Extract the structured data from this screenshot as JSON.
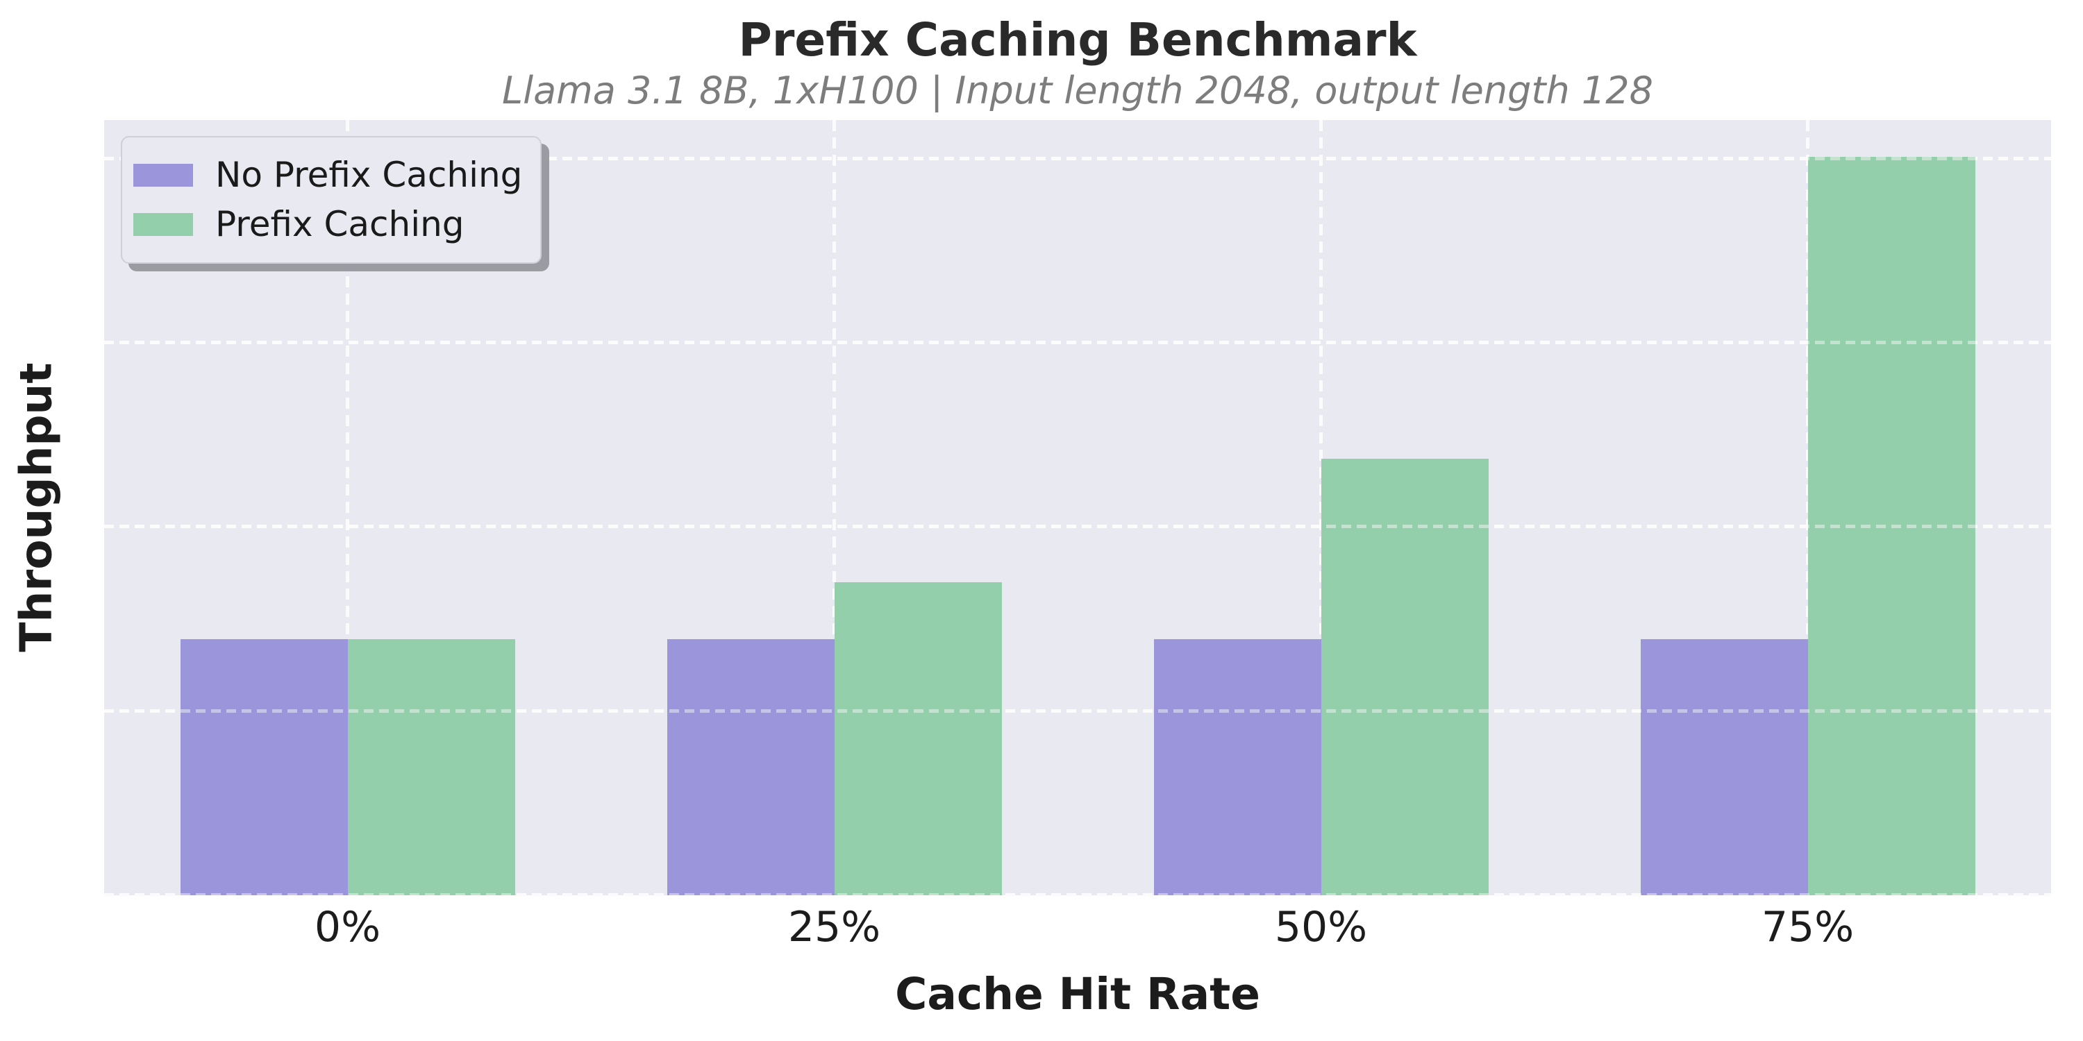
{
  "figure": {
    "title": "Prefix Caching Benchmark",
    "subtitle": "Llama 3.1 8B, 1xH100 | Input length 2048, output length 128"
  },
  "chart_data": {
    "type": "bar",
    "title": "Prefix Caching Benchmark",
    "subtitle": "Llama 3.1 8B, 1xH100 | Input length 2048, output length 128",
    "categories": [
      "0%",
      "25%",
      "50%",
      "75%"
    ],
    "series": [
      {
        "name": "No Prefix Caching",
        "color": "#9b96db",
        "values": [
          1.39,
          1.39,
          1.39,
          1.39
        ]
      },
      {
        "name": "Prefix Caching",
        "color": "#94cfac",
        "values": [
          1.39,
          1.7,
          2.37,
          4.01
        ]
      }
    ],
    "xlabel": "Cache Hit Rate",
    "ylabel": "Throughput",
    "ylim": [
      0,
      4.21
    ],
    "ytick_interval": 1,
    "yticks_labeled": false,
    "value_units": "relative units (y-axis has no numeric tick labels; 1.0 = one gridline interval)",
    "grid": "dashed white horizontal and vertical gridlines on lavender panel",
    "legend_position": "upper-left"
  },
  "colors": {
    "page_background": "#ffffff",
    "plot_background": "#e9e9f1",
    "gridline": "#fbfbfb",
    "bar_no_prefix_caching": "#9b96db",
    "bar_prefix_caching": "#94cfac",
    "title_text": "#2a2a2a",
    "subtitle_text": "#7d7d7d",
    "axis_text": "#1c1c1c",
    "legend_border": "#cfcfd8",
    "legend_shadow": "#9b9ba2"
  }
}
